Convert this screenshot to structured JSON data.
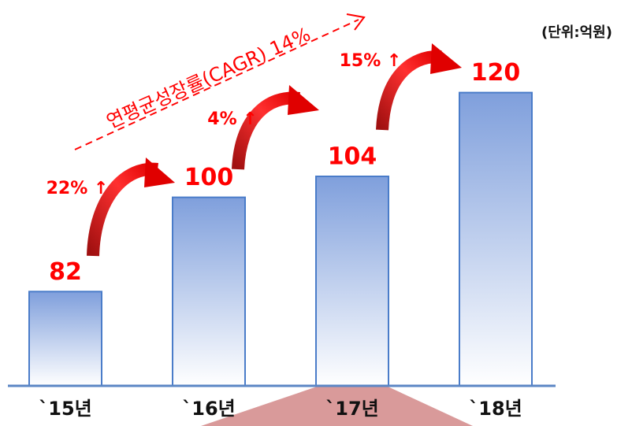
{
  "chart_data": {
    "type": "bar",
    "unit": "(단위:억원)",
    "categories": [
      "`15년",
      "`16년",
      "`17년",
      "`18년"
    ],
    "values": [
      82,
      100,
      104,
      120
    ],
    "color": "#7f9fdc",
    "ylim": [
      64,
      124
    ],
    "annotations": [
      "22% ↑",
      "4% ↑",
      "15% ↑"
    ],
    "cagr_label": "연평균성장률(CAGR)   14%"
  }
}
